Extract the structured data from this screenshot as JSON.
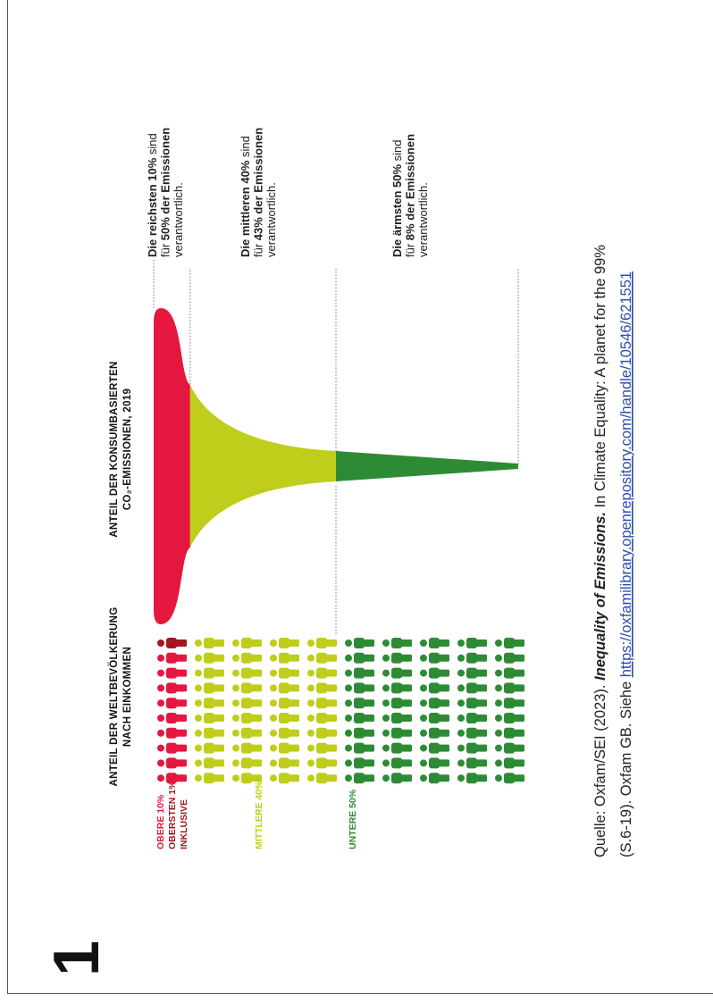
{
  "page_number": "1",
  "headers": {
    "population": [
      "ANTEIL DER WELTBEVÖLKERUNG",
      "NACH EINKOMMEN"
    ],
    "emissions": [
      "ANTEIL DER KONSUMBASIERTEN",
      "CO₂-EMISSIONEN, 2019"
    ]
  },
  "groups": [
    {
      "label": [
        "OBERE 10%",
        "OBERSTEN 1%",
        "INKLUSIVE"
      ],
      "population_share": 10,
      "emission_share": 50,
      "color": "#e4173e",
      "highlight_color": "#a3161f",
      "annotation": [
        [
          {
            "text": "Die reichsten 10%",
            "bold": true
          },
          {
            "text": " sind",
            "bold": false
          }
        ],
        [
          {
            "text": "für ",
            "bold": false
          },
          {
            "text": "50% der Emissionen",
            "bold": true
          }
        ],
        [
          {
            "text": "verantwortlich.",
            "bold": false
          }
        ]
      ]
    },
    {
      "label": [
        "MITTLERE 40%"
      ],
      "population_share": 40,
      "emission_share": 43,
      "color": "#bfcd1b",
      "annotation": [
        [
          {
            "text": "Die mittleren 40%",
            "bold": true
          },
          {
            "text": " sind",
            "bold": false
          }
        ],
        [
          {
            "text": "für ",
            "bold": false
          },
          {
            "text": "43% der Emissionen",
            "bold": true
          }
        ],
        [
          {
            "text": "verantwortlich.",
            "bold": false
          }
        ]
      ]
    },
    {
      "label": [
        "UNTERE 50%"
      ],
      "population_share": 50,
      "emission_share": 8,
      "color": "#2e8b35",
      "annotation": [
        [
          {
            "text": "Die ärmsten 50%",
            "bold": true
          },
          {
            "text": " sind",
            "bold": false
          }
        ],
        [
          {
            "text": "für ",
            "bold": false
          },
          {
            "text": "8% der Emissionen",
            "bold": true
          }
        ],
        [
          {
            "text": "verantwortlich.",
            "bold": false
          }
        ]
      ]
    }
  ],
  "source": [
    [
      {
        "text": "Quelle: Oxfam/SEI (2023). ",
        "style": "normal"
      },
      {
        "text": "Inequality of Emissions.",
        "style": "bold-italic"
      },
      {
        "text": " In Climate Equality: A planet for the 99%",
        "style": "normal"
      }
    ],
    [
      {
        "text": "(S.6-19). Oxfam GB. Siehe ",
        "style": "normal"
      },
      {
        "text": "https://oxfamilibrary.openrepository.com/handle/10546/621551",
        "style": "link"
      }
    ]
  ]
}
